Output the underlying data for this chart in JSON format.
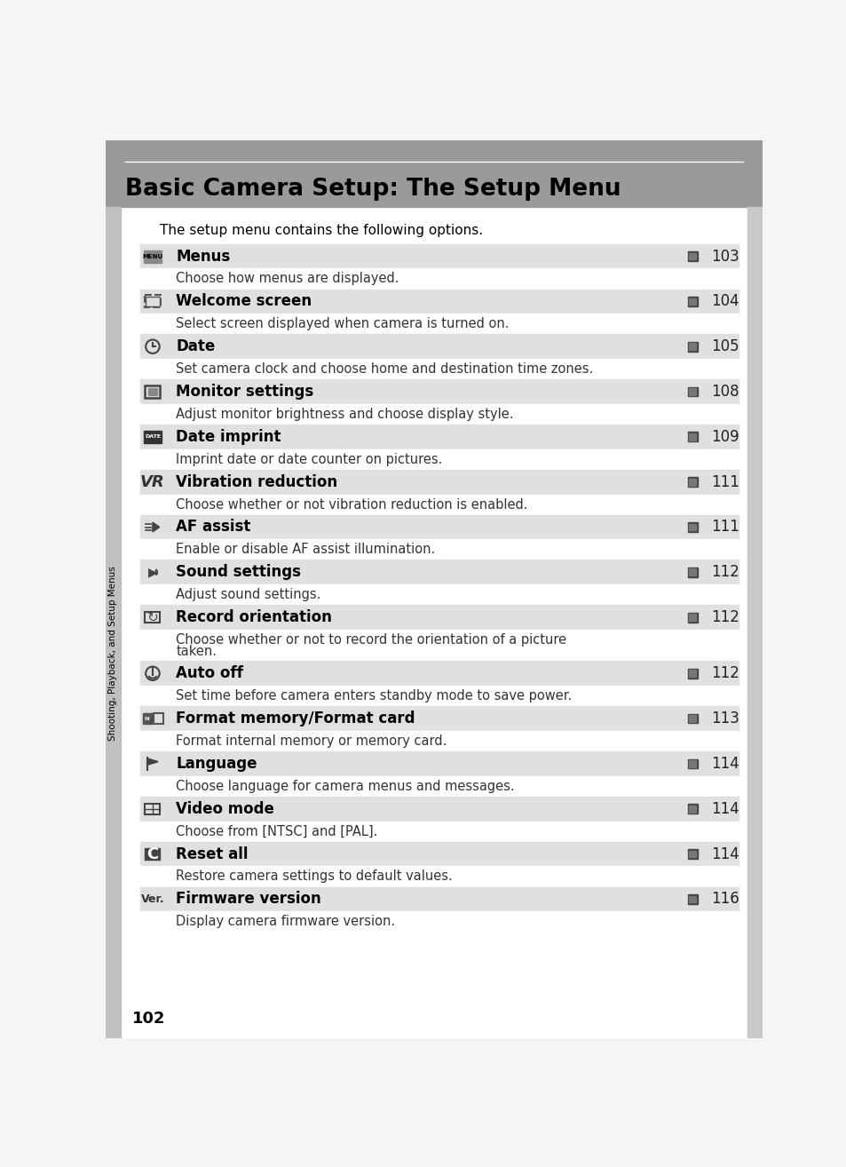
{
  "title": "Basic Camera Setup: The Setup Menu",
  "intro": "The setup menu contains the following options.",
  "bg_color": "#f5f5f5",
  "header_bg": "#999999",
  "row_bg": "#e0e0e0",
  "white_bg": "#f8f8f8",
  "title_color": "#000000",
  "sidebar_text": "Shooting, Playback, and Setup Menus",
  "sidebar_bg": "#bbbbbb",
  "page_number": "102",
  "items": [
    {
      "label": "Menus",
      "page": "103",
      "desc": "Choose how menus are displayed.",
      "icon_type": "menu_box",
      "desc_lines": 1
    },
    {
      "label": "Welcome screen",
      "page": "104",
      "desc": "Select screen displayed when camera is turned on.",
      "icon_type": "camera_box",
      "desc_lines": 1
    },
    {
      "label": "Date",
      "page": "105",
      "desc": "Set camera clock and choose home and destination time zones.",
      "icon_type": "clock",
      "desc_lines": 1
    },
    {
      "label": "Monitor settings",
      "page": "108",
      "desc": "Adjust monitor brightness and choose display style.",
      "icon_type": "monitor_box",
      "desc_lines": 1
    },
    {
      "label": "Date imprint",
      "page": "109",
      "desc": "Imprint date or date counter on pictures.",
      "icon_type": "date_box",
      "desc_lines": 1
    },
    {
      "label": "Vibration reduction",
      "page": "111",
      "desc": "Choose whether or not vibration reduction is enabled.",
      "icon_type": "vr_text",
      "desc_lines": 1
    },
    {
      "label": "AF assist",
      "page": "111",
      "desc": "Enable or disable AF assist illumination.",
      "icon_type": "af_box",
      "desc_lines": 1
    },
    {
      "label": "Sound settings",
      "page": "112",
      "desc": "Adjust sound settings.",
      "icon_type": "sound_icon",
      "desc_lines": 1
    },
    {
      "label": "Record orientation",
      "page": "112",
      "desc": "Choose whether or not to record the orientation of a picture\ntaken.",
      "icon_type": "record_box",
      "desc_lines": 2
    },
    {
      "label": "Auto off",
      "page": "112",
      "desc": "Set time before camera enters standby mode to save power.",
      "icon_type": "autooff_icon",
      "desc_lines": 1
    },
    {
      "label": "Format memory/Format card",
      "page": "113",
      "desc": "Format internal memory or memory card.",
      "icon_type": "format_icon",
      "desc_lines": 1
    },
    {
      "label": "Language",
      "page": "114",
      "desc": "Choose language for camera menus and messages.",
      "icon_type": "lang_icon",
      "desc_lines": 1
    },
    {
      "label": "Video mode",
      "page": "114",
      "desc": "Choose from [NTSC] and [PAL].",
      "icon_type": "video_icon",
      "desc_lines": 1
    },
    {
      "label": "Reset all",
      "page": "114",
      "desc": "Restore camera settings to default values.",
      "icon_type": "reset_box",
      "desc_lines": 1
    },
    {
      "label": "Firmware version",
      "page": "116",
      "desc": "Display camera firmware version.",
      "icon_type": "ver_text",
      "desc_lines": 1
    }
  ]
}
